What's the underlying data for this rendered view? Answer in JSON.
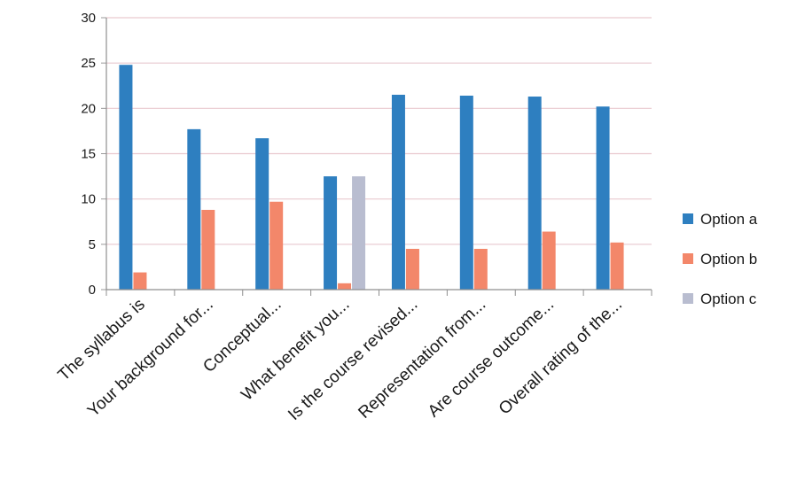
{
  "chart_data": {
    "type": "bar",
    "title": "",
    "xlabel": "",
    "ylabel": "",
    "ylim": [
      0,
      30
    ],
    "yticks": [
      0,
      5,
      10,
      15,
      20,
      25,
      30
    ],
    "grid": true,
    "legend_position": "right",
    "categories": [
      "The syllabus is",
      "Your background for...",
      "Conceptual...",
      "What benefit you...",
      "Is the course revised...",
      "Representation from...",
      "Are course outcome...",
      "Overall rating of the..."
    ],
    "series": [
      {
        "name": "Option a",
        "color": "#2e7fc0",
        "values": [
          24.8,
          17.7,
          16.7,
          12.5,
          21.5,
          21.4,
          21.3,
          20.2
        ]
      },
      {
        "name": "Option b",
        "color": "#f3876a",
        "values": [
          1.9,
          8.8,
          9.7,
          0.7,
          4.5,
          4.5,
          6.4,
          5.2
        ]
      },
      {
        "name": "Option c",
        "color": "#b9bdd0",
        "values": [
          0,
          0,
          0,
          12.5,
          0,
          0,
          0,
          0
        ]
      }
    ]
  }
}
